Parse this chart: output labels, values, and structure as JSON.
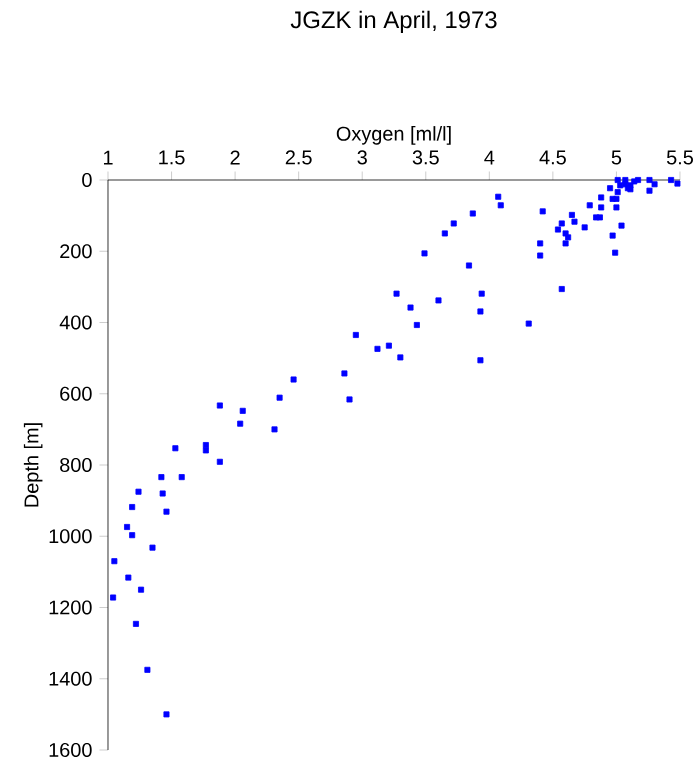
{
  "chart_data": {
    "type": "scatter",
    "title": "JGZK in April, 1973",
    "xlabel": "Oxygen [ml/l]",
    "ylabel": "Depth [m]",
    "xlim": [
      1,
      5.5
    ],
    "xticks": [
      1,
      1.5,
      2,
      2.5,
      3,
      3.5,
      4,
      4.5,
      5,
      5.5
    ],
    "ylim": [
      1600,
      0
    ],
    "yticks": [
      0,
      200,
      400,
      600,
      800,
      1000,
      1200,
      1400,
      1600
    ],
    "grid": false,
    "marker": "square",
    "series": [
      {
        "color": "#0000ff",
        "x": [
          3.27,
          2.95,
          3.12,
          3.21,
          3.3,
          2.86,
          2.9,
          2.46,
          2.35,
          2.31,
          2.06,
          2.04,
          1.88,
          1.77,
          1.77,
          1.88,
          1.53,
          1.42,
          1.58,
          1.24,
          1.43,
          1.19,
          1.46,
          1.15,
          1.19,
          1.35,
          1.05,
          1.16,
          1.26,
          1.04,
          1.22,
          1.31,
          1.46,
          4.07,
          4.09,
          3.87,
          3.72,
          3.65,
          3.49,
          3.84,
          4.42,
          4.4,
          4.4,
          4.57,
          4.31,
          3.6,
          3.94,
          3.38,
          3.93,
          3.43,
          3.93,
          4.65,
          4.67,
          4.57,
          4.54,
          4.6,
          4.62,
          4.6,
          4.75,
          4.79,
          4.84,
          4.87,
          4.88,
          4.88,
          4.95,
          4.97,
          5.0,
          5.0,
          5.04,
          4.97,
          4.99,
          5.01,
          5.03,
          5.07,
          5.07,
          5.09,
          5.11,
          5.11,
          5.14,
          5.17,
          5.01,
          5.26,
          5.26,
          5.3,
          5.43,
          5.48
        ],
        "values": [
          319,
          435,
          474,
          465,
          498,
          543,
          616,
          560,
          611,
          700,
          648,
          684,
          633,
          744,
          759,
          791,
          753,
          834,
          834,
          875,
          880,
          918,
          931,
          974,
          997,
          1032,
          1070,
          1116,
          1150,
          1172,
          1246,
          1375,
          1500,
          47,
          71,
          94,
          122,
          150,
          206,
          240,
          88,
          178,
          212,
          306,
          403,
          338,
          319,
          358,
          369,
          407,
          506,
          98,
          117,
          122,
          139,
          150,
          161,
          178,
          133,
          71,
          105,
          105,
          49,
          77,
          23,
          53,
          53,
          77,
          128,
          156,
          204,
          0,
          15,
          0,
          12,
          23,
          15,
          26,
          4,
          0,
          34,
          0,
          30,
          12,
          0,
          10
        ]
      }
    ]
  }
}
